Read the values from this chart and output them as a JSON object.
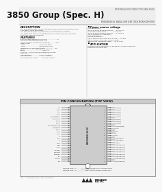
{
  "title_company": "MITSUBISHI SEMICONDUCTOR DATA BOOK",
  "title_main": "3850 Group (Spec. H)",
  "subtitle": "M38509E4H-SS  SINGLE-CHIP 8-BIT CMOS MICROCOMPUTER",
  "bg_color": "#f8f8f8",
  "description_title": "DESCRIPTION",
  "description_lines": [
    "The 3850 group (Spec. H) is a high-performance 8-bit microcomputer in the",
    "S-35 family series technology.",
    "The 3850 group (Spec. H) is designed for the Mitsubishi products",
    "and offers wide selection of peripheral and includes several I/O functions,",
    "RAM timer, and A/D converter."
  ],
  "features_title": "FEATURES",
  "features_lines": [
    "Basic machine language instructions .................... 71",
    "Minimum instruction execution time",
    " (at 16 MHz or 8 MHz Station-Frequency) ......... 1.5 us",
    "Memory size:",
    "  ROM ................................ 64K to 32K bytes",
    "  RAM ................................ 512 to 1024 bytes",
    "Programmable input/output ports ...................... 26",
    "Timers ......................... 8 channel, 1-8 source",
    "Timers ........................................ 8-bit x 4",
    "Serial I/O .. SIO to 16-bit full-duplex/semi-duplex",
    "Basic I/O ............................................... 1",
    "A/D converter .................. 4-input 8 channel",
    "Watchdog timer .............................. 16-bit x 1",
    "Clock generator/crystal ......... 8-MHz or 16-MHz"
  ],
  "power_title": "Power source voltage",
  "power_lines": [
    "High speed mode:",
    " 8 MHz or 8 MHz Station-Frequency ..... 4.0 to 5.5V",
    " in standby system mode ............... 2.7 to 5.5V",
    " 8 MHz or 8 MHz Station-Frequency ..... 2.7 to 5.5V",
    " (at 16 MHz oscillator frequency)",
    "Power dissipation:",
    " in High speed mode:",
    " (at 16-MHz oscillation freq, at 5V source) ... 200 mW",
    " (at 32 MHz oscillation freq, only 5V source) .",
    " Temperature independent range .... -20 to +85 C"
  ],
  "app_title": "APPLICATION",
  "app_lines": [
    "Office automation equipment, FA equipment, Household products,",
    "Consumer electronics sets"
  ],
  "pin_config_title": "PIN CONFIGURATION (TOP VIEW)",
  "left_pins": [
    "VCC",
    "Reset",
    "XTAL",
    "XOUT",
    "P4(CN)Capture",
    "P4(RxTx)out",
    "P4out1",
    "P4out0",
    "P4-CN Mux/Receive",
    "Mux/Receive",
    "P5-out",
    "P5out",
    "P5in",
    "P5",
    "P5in",
    "P5",
    "P5in",
    "GND",
    "P8out",
    "P8out/Rx",
    "P9/Output",
    "Wakeup 1",
    "Key",
    "Oscillate",
    "Port"
  ],
  "right_pins": [
    "P10(Bus)",
    "P11(Bus)",
    "P12(Bus)",
    "P13(Bus)",
    "P14(Bus)",
    "P15(Bus)",
    "P16(Bus)",
    "P17(Bus)",
    "P18(Bus/Recv)",
    "P1out",
    "Port",
    "P1",
    "Port",
    "Port/Ext(Bus)",
    "Port/Ext(Bus)",
    "Port/Ext",
    "Port/Ext(Bus10)",
    "Port/Ext(Bus11)",
    "Port/Ext(Bus12)",
    "Port/Ext(Bus13)",
    "Port/Ext(Bus14)",
    "Port/Ext(Bus15)",
    "Port/Ext(Bus16)",
    "Port/Ext(Bus17)"
  ],
  "ic_text": "M38509E4H-SS/SP",
  "package_lines": [
    "Package type:  FP  ________  64P6S (64-pin plastic molded SSOP)",
    "Package type:  SP  ________  63P6S (63-pin plastic molded SOP)"
  ],
  "fig_caption": "Fig. 1  M38509E4H-SS/SP pin configuration"
}
